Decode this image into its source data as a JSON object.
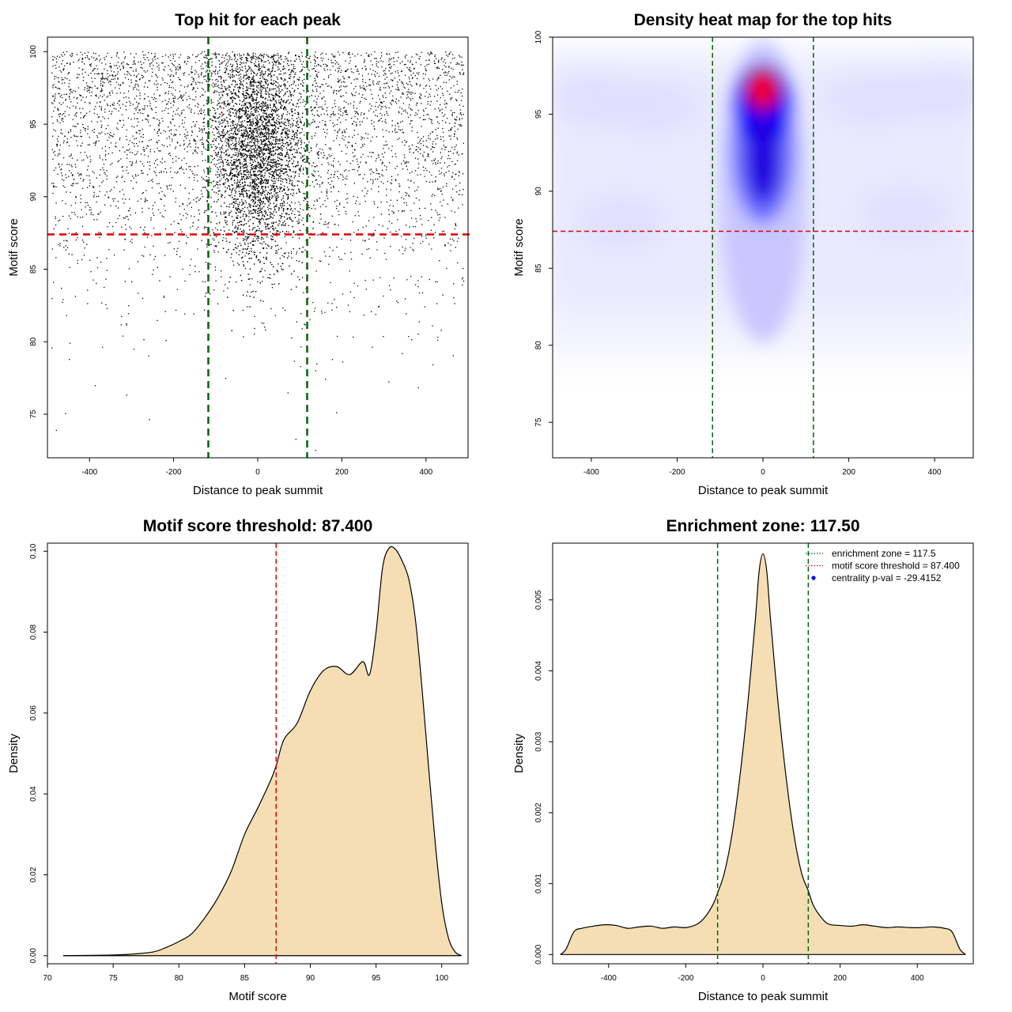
{
  "chart_data": [
    {
      "id": "scatter",
      "type": "scatter",
      "title": "Top hit for each peak",
      "xlabel": "Distance to peak summit",
      "ylabel": "Motif score",
      "xlim": [
        -500,
        500
      ],
      "ylim": [
        72,
        101
      ],
      "xticks": [
        -400,
        -200,
        0,
        200,
        400
      ],
      "yticks": [
        75,
        80,
        85,
        90,
        95,
        100
      ],
      "xticklabels": [
        "-400",
        "-200",
        "0",
        "200",
        "400"
      ],
      "yticklabels": [
        "75",
        "80",
        "85",
        "90",
        "95",
        "100"
      ],
      "vlines": [
        -117.5,
        117.5
      ],
      "hline": 87.4,
      "vline_color": "#006400",
      "hline_color": "#e00000",
      "point_color": "#000000",
      "background_points": 4200,
      "central_points": 5200,
      "central_cluster": {
        "x_mean": 0,
        "x_sd": 55,
        "y_mean": 93,
        "y_sd": 3.6
      }
    },
    {
      "id": "heatmap",
      "type": "heatmap",
      "title": "Density heat map for the top hits",
      "xlabel": "Distance to peak summit",
      "ylabel": "Motif score",
      "xlim": [
        -490,
        490
      ],
      "ylim": [
        72.7,
        100
      ],
      "xticks": [
        -400,
        -200,
        0,
        200,
        400
      ],
      "yticks": [
        75,
        80,
        85,
        90,
        95,
        100
      ],
      "xticklabels": [
        "-400",
        "-200",
        "0",
        "200",
        "400"
      ],
      "yticklabels": [
        "75",
        "80",
        "85",
        "90",
        "95",
        "100"
      ],
      "vlines": [
        -117.5,
        117.5
      ],
      "hline": 87.4,
      "vline_color": "#006400",
      "hline_color": "#e00000",
      "colors": [
        "#ffffff",
        "#0000ff",
        "#ff0000"
      ],
      "peak": {
        "x": 0,
        "y": 96.6
      }
    },
    {
      "id": "score_density",
      "type": "area",
      "title": "Motif score threshold: 87.400",
      "xlabel": "Motif score",
      "ylabel": "Density",
      "xlim": [
        70,
        102
      ],
      "ylim": [
        -0.002,
        0.102
      ],
      "xticks": [
        70,
        75,
        80,
        85,
        90,
        95,
        100
      ],
      "yticks": [
        0,
        0.02,
        0.04,
        0.06,
        0.08,
        0.1
      ],
      "xticklabels": [
        "70",
        "75",
        "80",
        "85",
        "90",
        "95",
        "100"
      ],
      "yticklabels": [
        "0.00",
        "0.02",
        "0.04",
        "0.06",
        "0.08",
        "0.10"
      ],
      "x": [
        71.2,
        74,
        76,
        78,
        79,
        80,
        81,
        82,
        83,
        84,
        85,
        86,
        87,
        87.4,
        88,
        89,
        90,
        91,
        92,
        93,
        94,
        94.5,
        95,
        95.5,
        96,
        96.5,
        97,
        97.5,
        98,
        98.5,
        99,
        99.5,
        100,
        100.5,
        101,
        101.5
      ],
      "y": [
        0,
        0.0001,
        0.0003,
        0.0009,
        0.002,
        0.0035,
        0.0055,
        0.0095,
        0.0145,
        0.021,
        0.03,
        0.0365,
        0.0435,
        0.047,
        0.0535,
        0.0575,
        0.0655,
        0.0705,
        0.0715,
        0.0695,
        0.0727,
        0.0695,
        0.08,
        0.096,
        0.1008,
        0.1004,
        0.0975,
        0.093,
        0.083,
        0.066,
        0.0465,
        0.028,
        0.013,
        0.0045,
        0.001,
        0
      ],
      "threshold": 87.4,
      "fill_color": "#f5deb3",
      "threshold_color": "#e00000"
    },
    {
      "id": "distance_density",
      "type": "area",
      "title": "Enrichment zone: 117.50",
      "xlabel": "Distance to peak summit",
      "ylabel": "Density",
      "xlim": [
        -545,
        545
      ],
      "ylim": [
        -0.00013,
        0.0058
      ],
      "xticks": [
        -400,
        -200,
        0,
        200,
        400
      ],
      "yticks": [
        0,
        0.001,
        0.002,
        0.003,
        0.004,
        0.005
      ],
      "xticklabels": [
        "-400",
        "-200",
        "0",
        "200",
        "400"
      ],
      "yticklabels": [
        "0.000",
        "0.001",
        "0.002",
        "0.003",
        "0.004",
        "0.005"
      ],
      "x": [
        -525,
        -510,
        -490,
        -470,
        -440,
        -410,
        -380,
        -350,
        -320,
        -290,
        -260,
        -230,
        -200,
        -170,
        -150,
        -130,
        -117.5,
        -100,
        -80,
        -60,
        -40,
        -20,
        -10,
        0,
        10,
        20,
        40,
        60,
        80,
        100,
        117.5,
        130,
        150,
        170,
        200,
        230,
        260,
        290,
        320,
        350,
        380,
        410,
        440,
        470,
        490,
        510,
        525
      ],
      "y": [
        0,
        8e-05,
        0.00032,
        0.00037,
        0.0004,
        0.00042,
        0.00041,
        0.00037,
        0.00039,
        0.0004,
        0.00037,
        0.00039,
        0.00038,
        0.00043,
        0.00053,
        0.0007,
        0.00087,
        0.00115,
        0.0017,
        0.0025,
        0.0035,
        0.0047,
        0.0054,
        0.00565,
        0.0054,
        0.0047,
        0.0035,
        0.0025,
        0.0017,
        0.00115,
        0.0009,
        0.0007,
        0.00053,
        0.00043,
        0.00041,
        0.0004,
        0.00042,
        0.0004,
        0.00038,
        0.00039,
        0.00038,
        0.00038,
        0.00039,
        0.00037,
        0.00032,
        8e-05,
        0
      ],
      "vlines": [
        -117.5,
        117.5
      ],
      "fill_color": "#f5deb3",
      "vline_color": "#006400",
      "legend": [
        {
          "label": "enrichment zone = 117.5",
          "style": "dotted-line",
          "color": "#006400"
        },
        {
          "label": "motif score threshold = 87.400",
          "style": "dotted-line",
          "color": "#e00000"
        },
        {
          "label": "centrality p-val = -29.4152",
          "style": "point",
          "color": "#0000ff"
        }
      ],
      "legend_position": "top-right"
    }
  ]
}
